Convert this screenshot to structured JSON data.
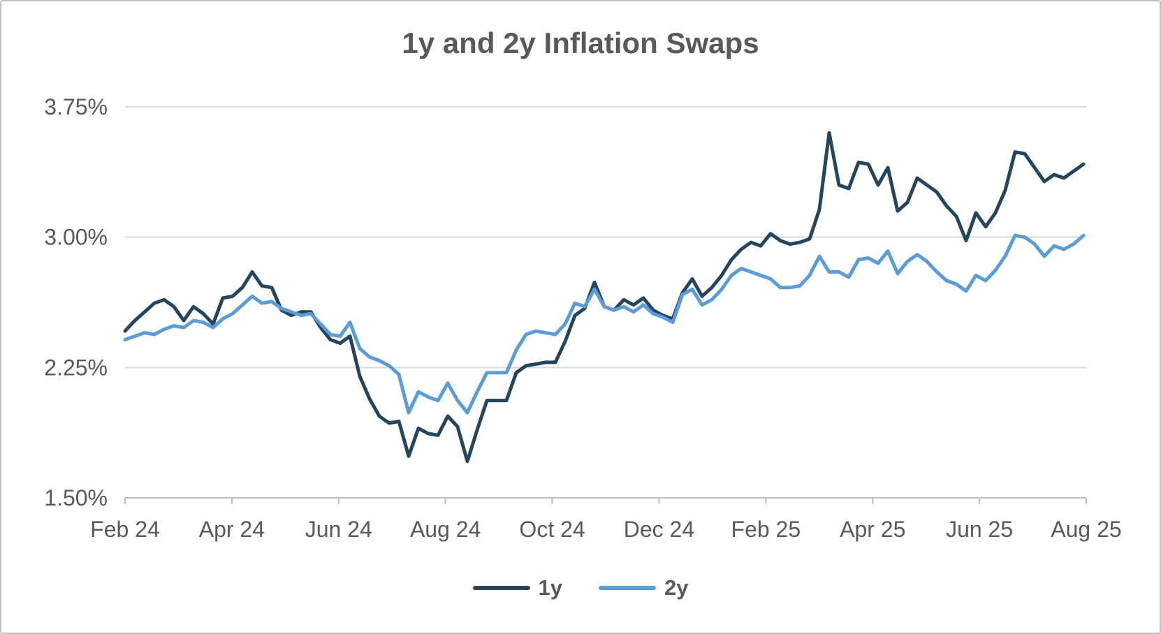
{
  "frame": {
    "border_color": "#BFBFBF",
    "background": "#FFFFFF"
  },
  "chart_data": {
    "type": "line",
    "title": "1y and 2y Inflation Swaps",
    "title_color": "#595959",
    "label_color": "#595959",
    "axis_color": "#BFBFBF",
    "gridline_color": "#D9D9D9",
    "grid": "horizontal",
    "legend_position": "bottom",
    "ylim": [
      1.5,
      3.75
    ],
    "y_ticks": [
      {
        "label": "1.50%",
        "value": 1.5
      },
      {
        "label": "2.25%",
        "value": 2.25
      },
      {
        "label": "3.00%",
        "value": 3.0
      },
      {
        "label": "3.75%",
        "value": 3.75
      }
    ],
    "x_tick_labels": [
      "Feb 24",
      "Apr 24",
      "Jun 24",
      "Aug 24",
      "Oct 24",
      "Dec 24",
      "Feb 25",
      "Apr 25",
      "Jun 25",
      "Aug 25"
    ],
    "series": [
      {
        "name": "1y",
        "color": "#25455D",
        "values": [
          2.46,
          2.52,
          2.57,
          2.62,
          2.64,
          2.6,
          2.52,
          2.6,
          2.56,
          2.5,
          2.65,
          2.66,
          2.71,
          2.8,
          2.72,
          2.71,
          2.58,
          2.55,
          2.57,
          2.57,
          2.48,
          2.41,
          2.39,
          2.43,
          2.2,
          2.07,
          1.97,
          1.93,
          1.94,
          1.74,
          1.9,
          1.87,
          1.86,
          1.97,
          1.91,
          1.71,
          1.89,
          2.06,
          2.06,
          2.06,
          2.22,
          2.26,
          2.27,
          2.28,
          2.28,
          2.4,
          2.55,
          2.59,
          2.74,
          2.6,
          2.58,
          2.64,
          2.61,
          2.65,
          2.58,
          2.55,
          2.53,
          2.68,
          2.76,
          2.66,
          2.71,
          2.78,
          2.87,
          2.93,
          2.97,
          2.95,
          3.02,
          2.98,
          2.96,
          2.97,
          2.99,
          3.16,
          3.6,
          3.3,
          3.28,
          3.43,
          3.42,
          3.3,
          3.4,
          3.15,
          3.2,
          3.34,
          3.3,
          3.26,
          3.18,
          3.12,
          2.98,
          3.14,
          3.06,
          3.14,
          3.27,
          3.49,
          3.48,
          3.4,
          3.32,
          3.36,
          3.34,
          3.38,
          3.42
        ]
      },
      {
        "name": "2y",
        "color": "#5B9CD6",
        "values": [
          2.41,
          2.43,
          2.45,
          2.44,
          2.47,
          2.49,
          2.48,
          2.52,
          2.51,
          2.48,
          2.53,
          2.56,
          2.61,
          2.66,
          2.62,
          2.63,
          2.59,
          2.57,
          2.55,
          2.56,
          2.5,
          2.44,
          2.43,
          2.51,
          2.36,
          2.31,
          2.29,
          2.26,
          2.21,
          1.99,
          2.11,
          2.08,
          2.06,
          2.16,
          2.06,
          1.99,
          2.11,
          2.22,
          2.22,
          2.22,
          2.35,
          2.44,
          2.46,
          2.45,
          2.44,
          2.5,
          2.62,
          2.6,
          2.7,
          2.6,
          2.58,
          2.6,
          2.57,
          2.61,
          2.56,
          2.54,
          2.51,
          2.67,
          2.7,
          2.61,
          2.64,
          2.7,
          2.78,
          2.82,
          2.8,
          2.78,
          2.76,
          2.71,
          2.71,
          2.72,
          2.78,
          2.89,
          2.8,
          2.8,
          2.77,
          2.87,
          2.88,
          2.85,
          2.92,
          2.79,
          2.86,
          2.9,
          2.86,
          2.8,
          2.75,
          2.73,
          2.69,
          2.78,
          2.75,
          2.81,
          2.89,
          3.01,
          3.0,
          2.96,
          2.89,
          2.95,
          2.93,
          2.96,
          3.01
        ]
      }
    ]
  },
  "legend": {
    "items": [
      {
        "label": "1y",
        "color": "#25455D"
      },
      {
        "label": "2y",
        "color": "#5B9CD6"
      }
    ]
  }
}
